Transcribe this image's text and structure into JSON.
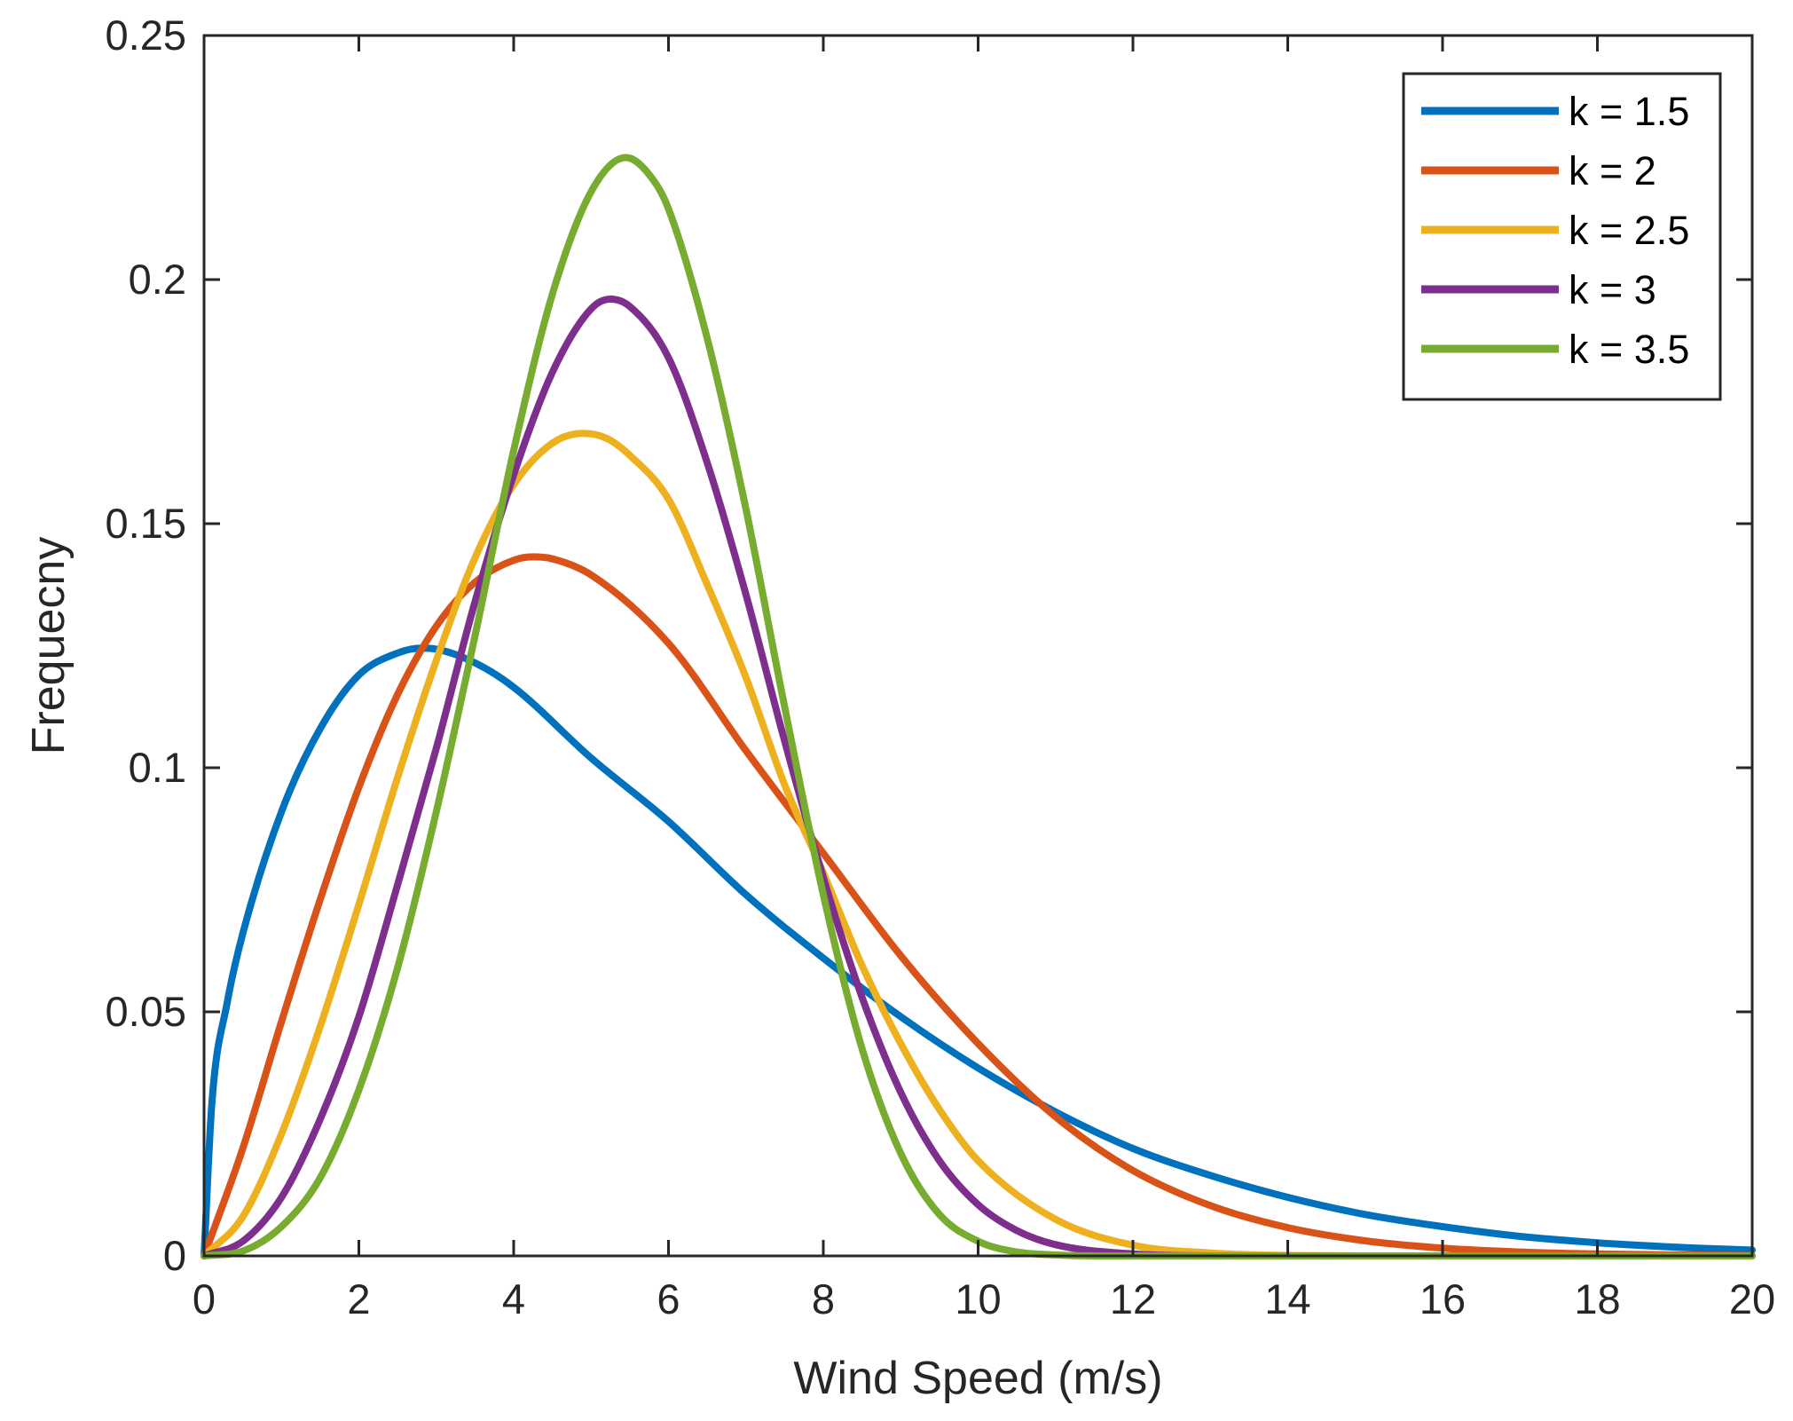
{
  "chart_data": {
    "type": "line",
    "title": "",
    "xlabel": "Wind Speed (m/s)",
    "ylabel": "Frequecny",
    "xlim": [
      0,
      20
    ],
    "ylim": [
      0,
      0.25
    ],
    "x_ticks": [
      "0",
      "2",
      "4",
      "6",
      "8",
      "10",
      "12",
      "14",
      "16",
      "18",
      "20"
    ],
    "y_ticks": [
      "0",
      "0.05",
      "0.1",
      "0.15",
      "0.2",
      "0.25"
    ],
    "grid": false,
    "legend_position": "top-right",
    "series": [
      {
        "name": "k = 1.5",
        "k": 1.5,
        "color": "#0072BD",
        "x": [
          0,
          0.1,
          0.3,
          0.5,
          1,
          1.5,
          2,
          2.5,
          2.8,
          3,
          3.5,
          4,
          5,
          6,
          7,
          8,
          9,
          10,
          11,
          12,
          13,
          14,
          15,
          16,
          17,
          18,
          19,
          20
        ],
        "values": [
          0,
          0.031,
          0.052,
          0.066,
          0.091,
          0.108,
          0.119,
          0.1235,
          0.1245,
          0.1243,
          0.1215,
          0.1165,
          0.102,
          0.089,
          0.074,
          0.061,
          0.049,
          0.0385,
          0.0295,
          0.022,
          0.0165,
          0.012,
          0.0085,
          0.006,
          0.004,
          0.0027,
          0.0018,
          0.0012
        ]
      },
      {
        "name": "k = 2",
        "k": 2,
        "color": "#D95319",
        "x": [
          0,
          0.5,
          1,
          1.5,
          2,
          2.5,
          3,
          3.5,
          4,
          4.25,
          4.5,
          5,
          6,
          7,
          8,
          9,
          10,
          11,
          12,
          13,
          14,
          15,
          16,
          17,
          18,
          19,
          20
        ],
        "values": [
          0,
          0.022,
          0.048,
          0.073,
          0.096,
          0.115,
          0.129,
          0.138,
          0.1425,
          0.1432,
          0.1428,
          0.1395,
          0.1255,
          0.1035,
          0.0825,
          0.0615,
          0.0435,
          0.0285,
          0.0175,
          0.0103,
          0.0058,
          0.0031,
          0.0016,
          0.0008,
          0.0004,
          0.0002,
          0.0001
        ]
      },
      {
        "name": "k = 2.5",
        "k": 2.5,
        "color": "#EDB120",
        "x": [
          0,
          0.5,
          1,
          1.5,
          2,
          2.5,
          3,
          3.5,
          4,
          4.5,
          4.9,
          5.2,
          5.5,
          6,
          6.5,
          7,
          7.5,
          8,
          8.5,
          9,
          9.5,
          10,
          11,
          12,
          13,
          14,
          16,
          20
        ],
        "values": [
          0,
          0.008,
          0.025,
          0.047,
          0.072,
          0.098,
          0.122,
          0.143,
          0.158,
          0.1665,
          0.1685,
          0.1675,
          0.164,
          0.155,
          0.1375,
          0.1185,
          0.0965,
          0.0785,
          0.0595,
          0.0435,
          0.03,
          0.0195,
          0.0075,
          0.0022,
          0.0006,
          0.0001,
          0,
          0
        ]
      },
      {
        "name": "k = 3",
        "k": 3,
        "color": "#7E2F8E",
        "x": [
          0,
          0.5,
          1,
          1.5,
          2,
          2.5,
          3,
          3.5,
          4,
          4.5,
          5,
          5.25,
          5.5,
          6,
          6.5,
          7,
          7.5,
          8,
          8.5,
          9,
          9.5,
          10,
          10.5,
          11,
          12,
          13,
          14,
          20
        ],
        "values": [
          0,
          0.003,
          0.012,
          0.028,
          0.049,
          0.076,
          0.104,
          0.134,
          0.16,
          0.181,
          0.194,
          0.196,
          0.1945,
          0.184,
          0.1625,
          0.1355,
          0.1055,
          0.0775,
          0.053,
          0.0335,
          0.0195,
          0.0105,
          0.0052,
          0.0023,
          0.0004,
          0,
          0,
          0
        ]
      },
      {
        "name": "k = 3.5",
        "k": 3.5,
        "color": "#77AC30",
        "x": [
          0,
          0.5,
          1,
          1.5,
          2,
          2.5,
          3,
          3.5,
          4,
          4.5,
          5,
          5.45,
          5.8,
          6,
          6.5,
          7,
          7.5,
          8,
          8.5,
          9,
          9.5,
          10,
          10.5,
          11,
          11.5,
          12,
          14,
          20
        ],
        "values": [
          0,
          0.001,
          0.006,
          0.016,
          0.034,
          0.059,
          0.091,
          0.127,
          0.165,
          0.197,
          0.218,
          0.225,
          0.2205,
          0.2145,
          0.188,
          0.153,
          0.1125,
          0.074,
          0.0425,
          0.021,
          0.0085,
          0.003,
          0.0008,
          0.0002,
          0,
          0,
          0,
          0
        ]
      }
    ]
  }
}
